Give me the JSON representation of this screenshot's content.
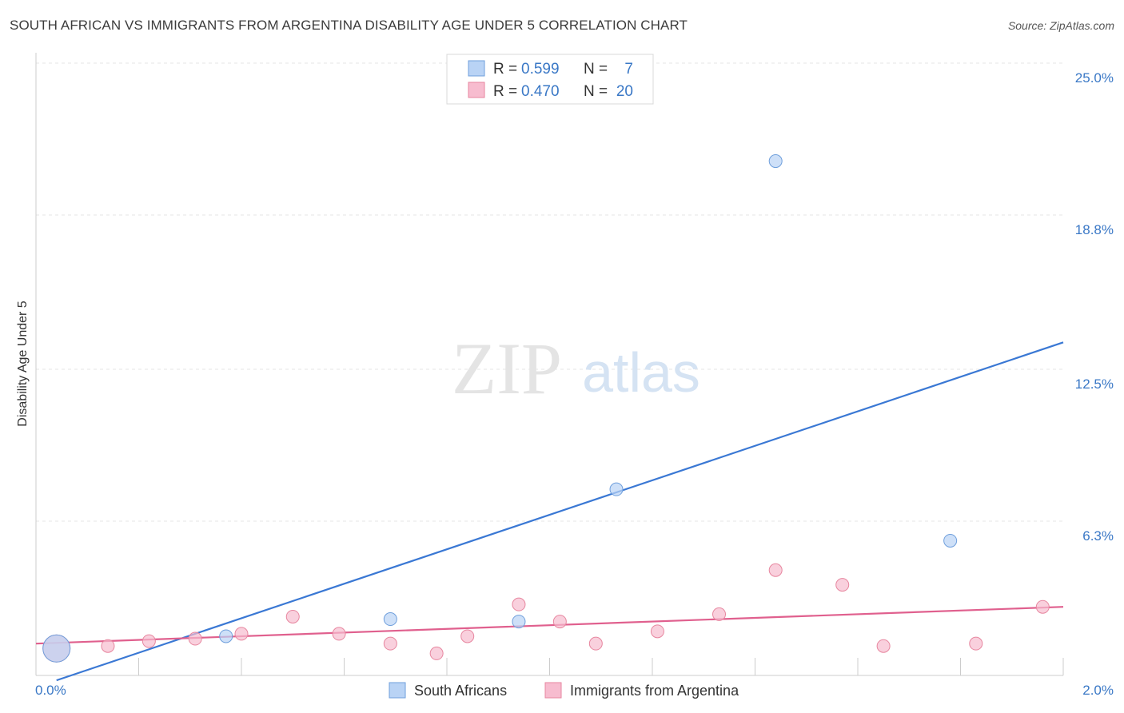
{
  "title": "SOUTH AFRICAN VS IMMIGRANTS FROM ARGENTINA DISABILITY AGE UNDER 5 CORRELATION CHART",
  "source": "Source: ZipAtlas.com",
  "watermark": {
    "zip": "ZIP",
    "atlas": "atlas"
  },
  "colors": {
    "blue": "#3a78d4",
    "blue_fill": "#b9d3f5",
    "pink": "#e0608e",
    "pink_fill": "#f7bccf",
    "tick_text": "#3a78c6"
  },
  "stats": [
    {
      "r_label": "R =",
      "r_value": "0.599",
      "n_label": "N =",
      "n_value": "7"
    },
    {
      "r_label": "R =",
      "r_value": "0.470",
      "n_label": "N =",
      "n_value": "20"
    }
  ],
  "chart_data": {
    "type": "scatter",
    "title": "SOUTH AFRICAN VS IMMIGRANTS FROM ARGENTINA DISABILITY AGE UNDER 5 CORRELATION CHART",
    "xlabel": "",
    "ylabel": "Disability Age Under 5",
    "xlim": [
      0.0,
      2.0
    ],
    "ylim": [
      0.0,
      25.0
    ],
    "x_tick_labels": [
      "0.0%",
      "2.0%"
    ],
    "y_ticks": [
      6.3,
      12.5,
      18.8,
      25.0
    ],
    "y_tick_labels": [
      "6.3%",
      "12.5%",
      "18.8%",
      "25.0%"
    ],
    "grid": true,
    "legend_placement": "bottom",
    "series": [
      {
        "name": "South Africans",
        "color": "#3a78d4",
        "points": [
          {
            "x": 0.04,
            "y": 1.1,
            "big": true
          },
          {
            "x": 0.37,
            "y": 1.6
          },
          {
            "x": 0.69,
            "y": 2.3
          },
          {
            "x": 0.94,
            "y": 2.2
          },
          {
            "x": 1.13,
            "y": 7.6
          },
          {
            "x": 1.44,
            "y": 21.0
          },
          {
            "x": 1.78,
            "y": 5.5
          }
        ],
        "trend": {
          "x1": 0.04,
          "y1": -0.2,
          "x2": 2.0,
          "y2": 13.6
        }
      },
      {
        "name": "Immigrants from Argentina",
        "color": "#e0608e",
        "points": [
          {
            "x": 0.04,
            "y": 1.1,
            "big": true
          },
          {
            "x": 0.14,
            "y": 1.2
          },
          {
            "x": 0.22,
            "y": 1.4
          },
          {
            "x": 0.31,
            "y": 1.5
          },
          {
            "x": 0.4,
            "y": 1.7
          },
          {
            "x": 0.5,
            "y": 2.4
          },
          {
            "x": 0.59,
            "y": 1.7
          },
          {
            "x": 0.69,
            "y": 1.3
          },
          {
            "x": 0.78,
            "y": 0.9
          },
          {
            "x": 0.84,
            "y": 1.6
          },
          {
            "x": 0.94,
            "y": 2.9
          },
          {
            "x": 1.02,
            "y": 2.2
          },
          {
            "x": 1.09,
            "y": 1.3
          },
          {
            "x": 1.21,
            "y": 1.8
          },
          {
            "x": 1.33,
            "y": 2.5
          },
          {
            "x": 1.44,
            "y": 4.3
          },
          {
            "x": 1.57,
            "y": 3.7
          },
          {
            "x": 1.65,
            "y": 1.2
          },
          {
            "x": 1.83,
            "y": 1.3
          },
          {
            "x": 1.96,
            "y": 2.8
          }
        ],
        "trend": {
          "x1": 0.0,
          "y1": 1.3,
          "x2": 2.0,
          "y2": 2.8
        }
      }
    ]
  }
}
